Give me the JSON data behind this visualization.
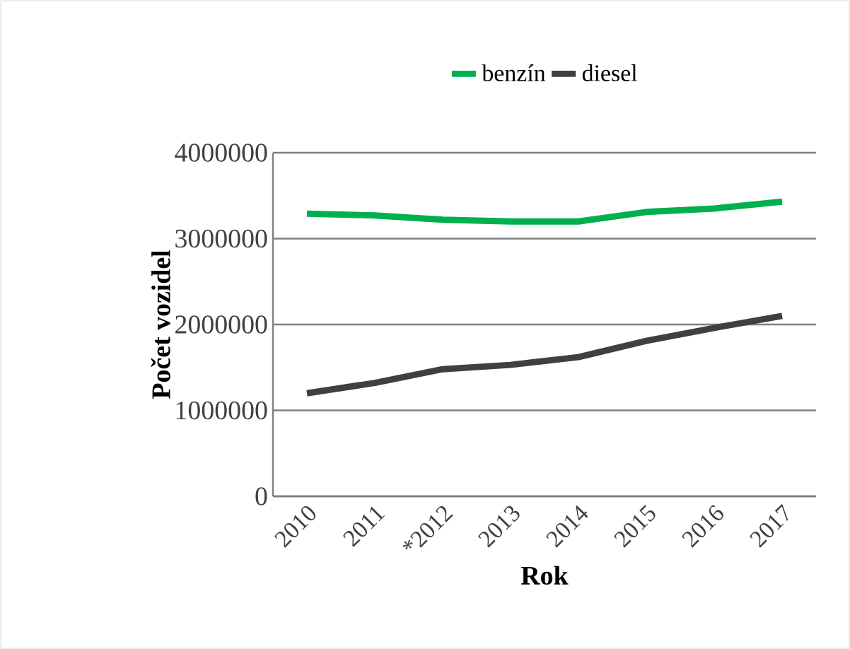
{
  "chart_data": {
    "type": "line",
    "xlabel": "Rok",
    "ylabel": "Počet vozidel",
    "categories": [
      "2010",
      "2011",
      "*2012",
      "2013",
      "2014",
      "2015",
      "2016",
      "2017"
    ],
    "series": [
      {
        "name": "benzín",
        "color": "#00b050",
        "values": [
          3290000,
          3270000,
          3220000,
          3200000,
          3200000,
          3310000,
          3350000,
          3430000
        ]
      },
      {
        "name": "diesel",
        "color": "#404040",
        "values": [
          1200000,
          1320000,
          1480000,
          1530000,
          1620000,
          1810000,
          1960000,
          2100000
        ]
      }
    ],
    "ylim": [
      0,
      4000000
    ],
    "yticks": [
      0,
      1000000,
      2000000,
      3000000,
      4000000
    ],
    "grid": "y",
    "legend": "top",
    "marker": "none",
    "line_style": "solid"
  }
}
